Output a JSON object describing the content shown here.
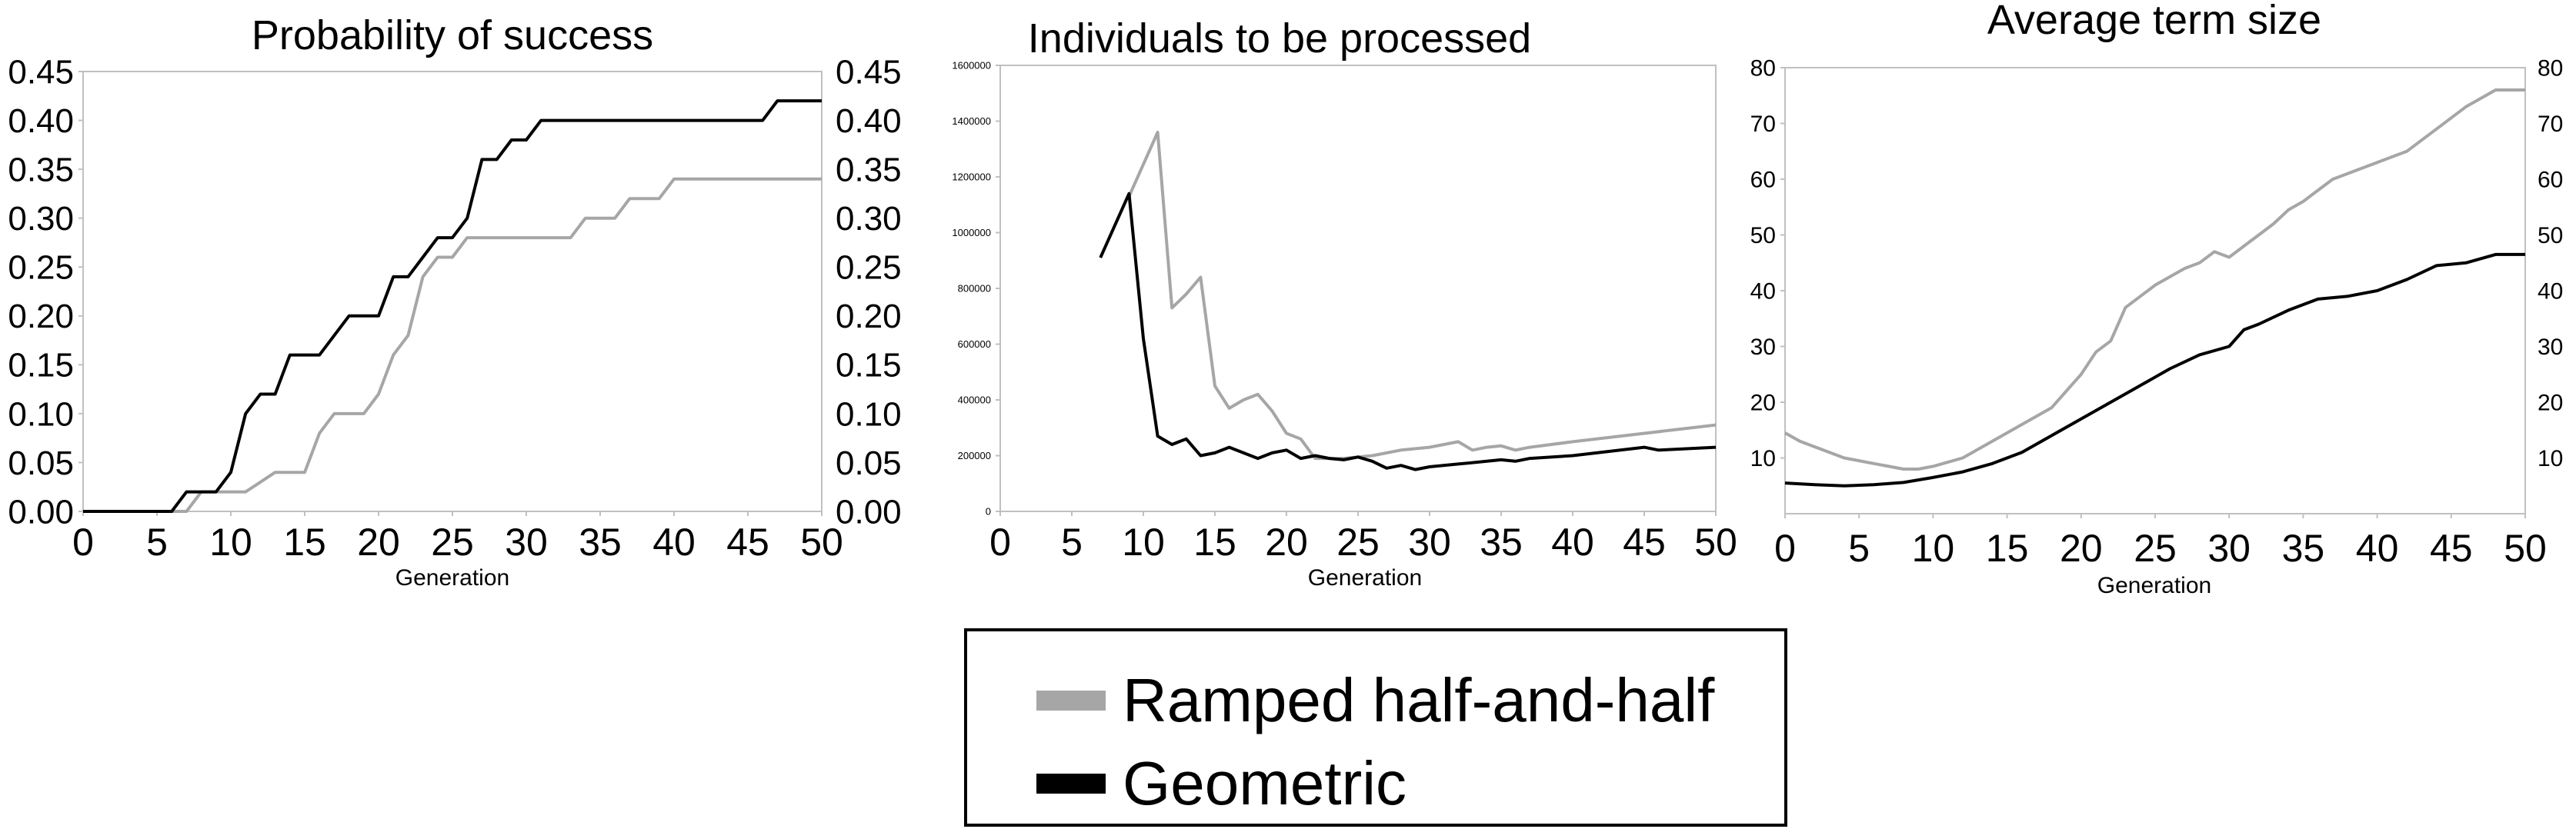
{
  "colors": {
    "ramped": "#a6a6a6",
    "geometric": "#000000",
    "axis": "#c0c0c0",
    "frame": "#000000"
  },
  "legend": {
    "items": [
      {
        "label": "Ramped half-and-half",
        "color": "#a6a6a6"
      },
      {
        "label": "Geometric",
        "color": "#000000"
      }
    ]
  },
  "chart_data": [
    {
      "type": "line",
      "title": "Probability of success",
      "xlabel": "Generation",
      "ylabel": "",
      "xlim": [
        0,
        50
      ],
      "ylim": [
        0,
        0.45
      ],
      "xticks": [
        "0",
        "5",
        "10",
        "15",
        "20",
        "25",
        "30",
        "35",
        "40",
        "45",
        "50"
      ],
      "yticks": [
        "0.00",
        "0.05",
        "0.10",
        "0.15",
        "0.20",
        "0.25",
        "0.30",
        "0.35",
        "0.40",
        "0.45"
      ],
      "right_axis_ticks": true,
      "grid": false,
      "series": [
        {
          "name": "Ramped half-and-half",
          "x": [
            0,
            7,
            8,
            9,
            10,
            11,
            12,
            13,
            14,
            15,
            16,
            17,
            18,
            19,
            20,
            21,
            22,
            23,
            24,
            25,
            26,
            27,
            28,
            29,
            30,
            31,
            32,
            33,
            34,
            35,
            36,
            37,
            38,
            39,
            40,
            45,
            50
          ],
          "y": [
            0,
            0,
            0.02,
            0.02,
            0.02,
            0.02,
            0.03,
            0.04,
            0.04,
            0.04,
            0.08,
            0.1,
            0.1,
            0.1,
            0.12,
            0.16,
            0.18,
            0.24,
            0.26,
            0.26,
            0.28,
            0.28,
            0.28,
            0.28,
            0.28,
            0.28,
            0.28,
            0.28,
            0.3,
            0.3,
            0.3,
            0.32,
            0.32,
            0.32,
            0.34,
            0.34,
            0.34
          ]
        },
        {
          "name": "Geometric",
          "x": [
            0,
            6,
            7,
            8,
            9,
            10,
            11,
            12,
            13,
            14,
            15,
            16,
            17,
            18,
            19,
            20,
            21,
            22,
            23,
            24,
            25,
            26,
            27,
            28,
            29,
            30,
            31,
            32,
            33,
            34,
            35,
            40,
            45,
            46,
            47,
            48,
            49,
            50
          ],
          "y": [
            0,
            0,
            0.02,
            0.02,
            0.02,
            0.04,
            0.1,
            0.12,
            0.12,
            0.16,
            0.16,
            0.16,
            0.18,
            0.2,
            0.2,
            0.2,
            0.24,
            0.24,
            0.26,
            0.28,
            0.28,
            0.3,
            0.36,
            0.36,
            0.38,
            0.38,
            0.4,
            0.4,
            0.4,
            0.4,
            0.4,
            0.4,
            0.4,
            0.4,
            0.42,
            0.42,
            0.42,
            0.42
          ]
        }
      ]
    },
    {
      "type": "line",
      "title": "Individuals to be processed",
      "xlabel": "Generation",
      "ylabel": "",
      "xlim": [
        0,
        50
      ],
      "ylim": [
        0,
        1600000
      ],
      "xticks": [
        "0",
        "5",
        "10",
        "15",
        "20",
        "25",
        "30",
        "35",
        "40",
        "45",
        "50"
      ],
      "yticks": [
        "0",
        "200000",
        "400000",
        "600000",
        "800000",
        "1000000",
        "1200000",
        "1400000",
        "1600000"
      ],
      "right_axis_ticks": false,
      "grid": false,
      "series": [
        {
          "name": "Ramped half-and-half",
          "x": [
            9,
            11,
            12,
            13,
            14,
            15,
            16,
            17,
            18,
            19,
            20,
            21,
            22,
            24,
            26,
            28,
            30,
            32,
            33,
            34,
            35,
            36,
            37,
            40,
            45,
            50
          ],
          "y": [
            1130000,
            1360000,
            730000,
            780000,
            840000,
            450000,
            370000,
            400000,
            420000,
            360000,
            280000,
            260000,
            190000,
            190000,
            200000,
            220000,
            230000,
            250000,
            220000,
            230000,
            235000,
            220000,
            230000,
            250000,
            280000,
            310000
          ]
        },
        {
          "name": "Geometric",
          "x": [
            7,
            9,
            10,
            11,
            12,
            13,
            14,
            15,
            16,
            17,
            18,
            19,
            20,
            21,
            22,
            23,
            24,
            25,
            26,
            27,
            28,
            29,
            30,
            32,
            34,
            35,
            36,
            37,
            40,
            45,
            46,
            50
          ],
          "y": [
            910000,
            1140000,
            620000,
            270000,
            240000,
            260000,
            200000,
            210000,
            230000,
            210000,
            190000,
            210000,
            220000,
            190000,
            200000,
            190000,
            185000,
            195000,
            180000,
            155000,
            165000,
            150000,
            160000,
            170000,
            180000,
            185000,
            180000,
            190000,
            200000,
            230000,
            220000,
            230000
          ]
        }
      ]
    },
    {
      "type": "line",
      "title": "Average term size",
      "xlabel": "Generation",
      "ylabel": "",
      "xlim": [
        0,
        50
      ],
      "ylim": [
        0,
        80
      ],
      "xticks": [
        "0",
        "5",
        "10",
        "15",
        "20",
        "25",
        "30",
        "35",
        "40",
        "45",
        "50"
      ],
      "yticks": [
        "10",
        "20",
        "30",
        "40",
        "50",
        "60",
        "70",
        "80"
      ],
      "right_axis_ticks": true,
      "grid": false,
      "series": [
        {
          "name": "Ramped half-and-half",
          "x": [
            0,
            1,
            2,
            3,
            4,
            5,
            6,
            7,
            8,
            9,
            10,
            12,
            14,
            16,
            18,
            19,
            20,
            21,
            22,
            23,
            24,
            25,
            26,
            27,
            28,
            29,
            30,
            31,
            32,
            33,
            34,
            35,
            36,
            37,
            38,
            39,
            40,
            41,
            42,
            43,
            44,
            45,
            46,
            47,
            48,
            49,
            50
          ],
          "y": [
            14.5,
            13,
            12,
            11,
            10,
            9.5,
            9,
            8.5,
            8,
            8,
            8.5,
            10,
            13,
            16,
            19,
            22,
            25,
            29,
            31,
            37,
            39,
            41,
            42.5,
            44,
            45,
            47,
            46,
            48,
            50,
            52,
            54.5,
            56,
            58,
            60,
            61,
            62,
            63,
            64,
            65,
            67,
            69,
            71,
            73,
            74.5,
            76,
            76,
            76
          ]
        },
        {
          "name": "Geometric",
          "x": [
            0,
            2,
            4,
            6,
            8,
            10,
            12,
            14,
            16,
            18,
            20,
            22,
            24,
            26,
            28,
            30,
            31,
            32,
            34,
            36,
            38,
            40,
            42,
            44,
            46,
            48,
            50
          ],
          "y": [
            5.5,
            5.2,
            5,
            5.2,
            5.6,
            6.5,
            7.5,
            9,
            11,
            14,
            17,
            20,
            23,
            26,
            28.5,
            30,
            33,
            34,
            36.5,
            38.5,
            39,
            40,
            42,
            44.5,
            45,
            46.5,
            46.5
          ]
        }
      ]
    }
  ]
}
